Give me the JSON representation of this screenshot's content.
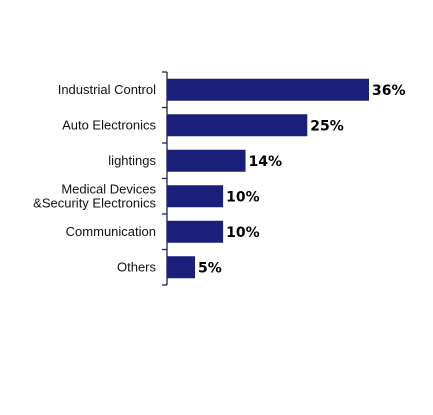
{
  "chart_data": {
    "type": "bar",
    "orientation": "horizontal",
    "title": "",
    "xlabel": "",
    "ylabel": "",
    "categories": [
      [
        "Industrial Control"
      ],
      [
        "Auto Electronics"
      ],
      [
        "lightings"
      ],
      [
        "Medical Devices",
        "&Security Electronics"
      ],
      [
        "Communication"
      ],
      [
        "Others"
      ]
    ],
    "values": [
      36,
      25,
      14,
      10,
      10,
      5
    ],
    "value_labels": [
      "36%",
      "25%",
      "14%",
      "10%",
      "10%",
      "5%"
    ],
    "xlim": [
      0,
      36
    ],
    "bar_color": "#1c1f7a",
    "grid": false,
    "legend": "none"
  }
}
